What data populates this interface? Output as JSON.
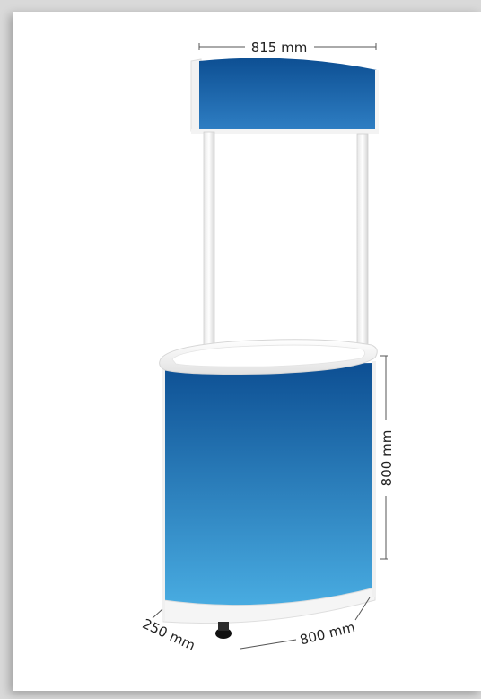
{
  "product": {
    "name": "promotional-counter-with-header"
  },
  "dimensions": {
    "header_width": "815 mm",
    "counter_height": "800 mm",
    "counter_width": "800 mm",
    "counter_depth": "250 mm"
  },
  "colors": {
    "panel_top": "#0d4f93",
    "panel_bottom": "#4aaee3",
    "frame_white": "#f7f7f7",
    "page_background": "#d9d9d9",
    "dimension_line": "#555555"
  }
}
